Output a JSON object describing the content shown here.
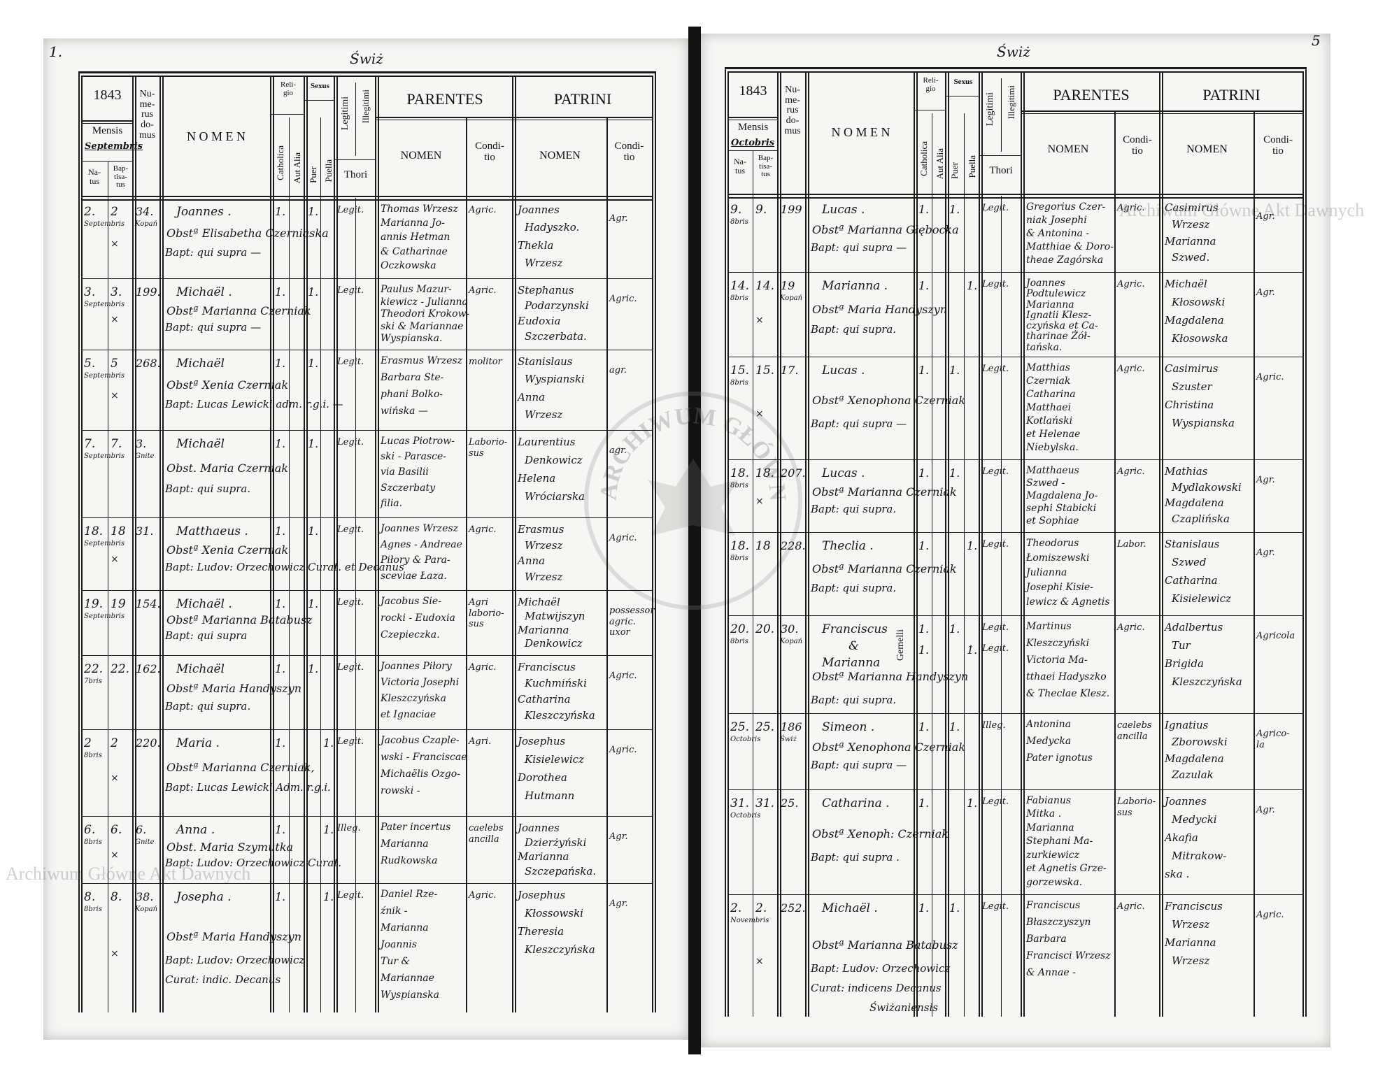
{
  "document": {
    "watermark": "Archiwum Główne Akt Dawnych",
    "seal_text": "ARCHIWUM GŁÓWNE AKT DAWNYCH",
    "header_labels": {
      "numerus_domus": "Nu-\nme-\nrus\ndo-\nmus",
      "mensis": "Mensis",
      "natus": "Na-\ntus",
      "baptisatus": "Bap-\ntisa-\ntus",
      "nomen": "N O M E N",
      "religio": "Reli-\ngio",
      "catholica": "Catholica",
      "aut_alia": "Aut Alia",
      "sexus": "Sexus",
      "puer": "Puer",
      "puella": "Puella",
      "legitimi": "Legitimi",
      "illegitimi": "Illegitimi",
      "thori": "Thori",
      "parentes": "PARENTES",
      "patrini": "PATRINI",
      "sub_nomen": "NOMEN",
      "conditio": "Condi-\ntio"
    }
  },
  "pages": [
    {
      "page_number": "1.",
      "place": "Świż",
      "year": "1843",
      "month": "Septembris",
      "entries": [
        {
          "natus": "2.",
          "bapt": "2",
          "month": "Septembris",
          "domus": "34.",
          "village": "Kopań",
          "nomen": "Joannes .",
          "mother": "Obstª Elisabetha Czerniaska",
          "baptizer": "Bapt: qui supra —",
          "catholica": "1.",
          "puer": "1.",
          "puella": "",
          "legit": "Legit.",
          "parentes": [
            "Thomas Wrzesz",
            "Marianna Jo-",
            "annis Hetman",
            "& Catharinae",
            "Oczkowska"
          ],
          "parentes_conditio": "Agric.",
          "patrini": [
            "Joannes",
            "Hadyszko.",
            "Thekla",
            "Wrzesz"
          ],
          "patrini_conditio": "Agr.",
          "mark": "×"
        },
        {
          "natus": "3.",
          "bapt": "3.",
          "month": "Septembris",
          "domus": "199.",
          "village": "",
          "nomen": "Michaël .",
          "mother": "Obstª Marianna Czerniak",
          "baptizer": "Bapt: qui supra —",
          "catholica": "1.",
          "puer": "1.",
          "puella": "",
          "legit": "Legit.",
          "parentes": [
            "Paulus Mazur-",
            "kiewicz - Julianna",
            "Theodori Krokow-",
            "ski & Mariannae",
            "Wyspianska."
          ],
          "parentes_conditio": "Agric.",
          "patrini": [
            "Stephanus",
            "Podarzynski",
            "Eudoxia",
            "Szczerbata."
          ],
          "patrini_conditio": "Agric.",
          "mark": "×"
        },
        {
          "natus": "5.",
          "bapt": "5",
          "month": "Septembris",
          "domus": "268.",
          "village": "",
          "nomen": "Michaël",
          "mother": "Obstª Xenia Czerniak",
          "baptizer": "Bapt: Lucas Lewicki adm. r.g.i. —",
          "catholica": "1.",
          "puer": "1.",
          "puella": "",
          "legit": "Legit.",
          "parentes": [
            "Erasmus Wrzesz",
            "Barbara Ste-",
            "phani Bolko-",
            "wińska —"
          ],
          "parentes_conditio": "molitor",
          "patrini": [
            "Stanislaus",
            "Wyspianski",
            "Anna",
            "Wrzesz"
          ],
          "patrini_conditio": "agr.",
          "mark": "×"
        },
        {
          "natus": "7.",
          "bapt": "7.",
          "month": "Septembris",
          "domus": "3.",
          "village": "Gnite",
          "nomen": "Michaël",
          "mother": "Obst. Maria Czerniak",
          "baptizer": "Bapt: qui supra.",
          "catholica": "1.",
          "puer": "1.",
          "puella": "",
          "legit": "Legit.",
          "parentes": [
            "Lucas Piotrow-",
            "ski - Parasce-",
            "via Basilii",
            "Szczerbaty",
            "filia."
          ],
          "parentes_conditio": "Laborio-\nsus",
          "patrini": [
            "Laurentius",
            "Denkowicz",
            "Helena",
            "Wróciarska"
          ],
          "patrini_conditio": "agr.",
          "mark": ""
        },
        {
          "natus": "18.",
          "bapt": "18",
          "month": "Septembris",
          "domus": "31.",
          "village": "",
          "nomen": "Matthaeus .",
          "mother": "Obstª Xenia Czerniak",
          "baptizer": "Bapt: Ludov: Orzechowicz Curat. et Decanus",
          "catholica": "1.",
          "puer": "1.",
          "puella": "",
          "legit": "Legit.",
          "parentes": [
            "Joannes Wrzesz",
            "Agnes - Andreae",
            "Piłory & Para-",
            "sceviae Łaza."
          ],
          "parentes_conditio": "Agric.",
          "patrini": [
            "Erasmus",
            "Wrzesz",
            "Anna",
            "Wrzesz"
          ],
          "patrini_conditio": "Agric.",
          "mark": "×"
        },
        {
          "natus": "19.",
          "bapt": "19",
          "month": "Septembris",
          "domus": "154.",
          "village": "",
          "nomen": "Michaël .",
          "mother": "Obstª Marianna Batabusz",
          "baptizer": "Bapt: qui supra",
          "catholica": "1.",
          "puer": "1.",
          "puella": "",
          "legit": "Legit.",
          "parentes": [
            "Jacobus Sie-",
            "rocki - Eudoxia",
            "Czepieczka."
          ],
          "parentes_conditio": "Agri\nlaborio-\nsus",
          "patrini": [
            "Michaël",
            "Matwijszyn",
            "Marianna",
            "Denkowicz"
          ],
          "patrini_conditio": "possessor\nagric.\nuxor",
          "mark": ""
        },
        {
          "natus": "22.",
          "bapt": "22.",
          "month": "7bris",
          "domus": "162.",
          "village": "",
          "nomen": "Michaël",
          "mother": "Obstª Maria Handyszyn",
          "baptizer": "Bapt: qui supra.",
          "catholica": "1.",
          "puer": "1.",
          "puella": "",
          "legit": "Legit.",
          "parentes": [
            "Joannes Piłory",
            "Victoria Josephi",
            "Kleszczyńska",
            "et Ignaciae"
          ],
          "parentes_conditio": "Agric.",
          "patrini": [
            "Franciscus",
            "Kuchmiński",
            "Catharina",
            "Kleszczyńska"
          ],
          "patrini_conditio": "Agric.",
          "mark": ""
        },
        {
          "natus": "2",
          "bapt": "2",
          "month": "8bris",
          "domus": "220.",
          "village": "",
          "nomen": "Maria .",
          "mother": "Obstª Marianna Czerniak,",
          "baptizer": "Bapt: Lucas Lewicki Adm. r.g.i.",
          "catholica": "1.",
          "puer": "",
          "puella": "1.",
          "legit": "Legit.",
          "parentes": [
            "Jacobus Czaple-",
            "wski - Franciscae",
            "Michaëlis Ozgo-",
            "rowski -"
          ],
          "parentes_conditio": "Agri.",
          "patrini": [
            "Josephus",
            "Kisielewicz",
            "Dorothea",
            "Hutmann"
          ],
          "patrini_conditio": "Agric.",
          "mark": "×"
        },
        {
          "natus": "6.",
          "bapt": "6.",
          "month": "8bris",
          "domus": "6.",
          "village": "Gnite",
          "nomen": "Anna .",
          "mother": "Obst. Maria Szymutka",
          "baptizer": "Bapt: Ludov: Orzechowicz Curat.",
          "catholica": "1.",
          "puer": "",
          "puella": "1.",
          "legit": "Illeg.",
          "parentes": [
            "Pater incertus",
            "Marianna",
            "Rudkowska"
          ],
          "parentes_conditio": "caelebs\nancilla",
          "patrini": [
            "Joannes",
            "Dzierżyński",
            "Marianna",
            "Szczepańska."
          ],
          "patrini_conditio": "Agr.",
          "mark": "×"
        },
        {
          "natus": "8.",
          "bapt": "8.",
          "month": "8bris",
          "domus": "38.",
          "village": "Kopań",
          "nomen": "Josepha .",
          "mother": "Obstª Maria Handyszyn",
          "baptizer": "Bapt: Ludov: Orzechowicz",
          "baptizer2": "Curat: indic. Decanus",
          "catholica": "1.",
          "puer": "",
          "puella": "1.",
          "legit": "Legit.",
          "parentes": [
            "Daniel Rze-",
            "źnik -",
            "Marianna",
            "Joannis",
            "Tur &",
            "Mariannae",
            "Wyspianska"
          ],
          "parentes_conditio": "Agric.",
          "patrini": [
            "Josephus",
            "Kłossowski",
            "Theresia",
            "Kleszczyńska"
          ],
          "patrini_conditio": "Agr.",
          "mark": "×"
        }
      ]
    },
    {
      "page_number": "5",
      "place": "Świż",
      "year": "1843",
      "month": "Octobris",
      "entries": [
        {
          "natus": "9.",
          "bapt": "9.",
          "month": "8bris",
          "domus": "199",
          "village": "",
          "nomen": "Lucas .",
          "mother": "Obstª Marianna Głębocka",
          "baptizer": "Bapt: qui supra —",
          "catholica": "1.",
          "puer": "1.",
          "puella": "",
          "legit": "Legit.",
          "parentes": [
            "Gregorius Czer-",
            "niak Josephi",
            "& Antonina -",
            "Matthiae & Doro-",
            "theae Zagórska"
          ],
          "parentes_conditio": "Agric.",
          "patrini": [
            "Casimirus",
            "Wrzesz",
            "Marianna",
            "Szwed."
          ],
          "patrini_conditio": "Agr.",
          "mark": ""
        },
        {
          "natus": "14.",
          "bapt": "14.",
          "month": "8bris",
          "domus": "19",
          "village": "Kopań",
          "nomen": "Marianna .",
          "mother": "Obstª Maria Handyszyn",
          "baptizer": "Bapt: qui supra.",
          "catholica": "1.",
          "puer": "",
          "puella": "1.",
          "legit": "Legit.",
          "parentes": [
            "Joannes",
            "Podtulewicz",
            "Marianna",
            "Ignatii Klesz-",
            "czyńska et Ca-",
            "tharinae Żół-",
            "tańska."
          ],
          "parentes_conditio": "Agric.",
          "patrini": [
            "Michaël",
            "Kłosowski",
            "Magdalena",
            "Kłosowska"
          ],
          "patrini_conditio": "Agr.",
          "mark": "×"
        },
        {
          "natus": "15.",
          "bapt": "15.",
          "month": "8bris",
          "domus": "17.",
          "village": "",
          "nomen": "Lucas .",
          "mother": "Obstª Xenophona Czerniak",
          "baptizer": "Bapt: qui supra —",
          "catholica": "1.",
          "puer": "1.",
          "puella": "",
          "legit": "Legit.",
          "parentes": [
            "Matthias",
            "Czerniak",
            "Catharina",
            "Matthaei",
            "Kotlański",
            "et Helenae",
            "Niebylska."
          ],
          "parentes_conditio": "Agric.",
          "patrini": [
            "Casimirus",
            "Szuster",
            "Christina",
            "Wyspianska"
          ],
          "patrini_conditio": "Agric.",
          "mark": "×"
        },
        {
          "natus": "18.",
          "bapt": "18.",
          "month": "8bris",
          "domus": "207.",
          "village": "",
          "nomen": "Lucas .",
          "mother": "Obstª Marianna Czerniak",
          "baptizer": "Bapt: qui supra.",
          "catholica": "1.",
          "puer": "1.",
          "puella": "",
          "legit": "Legit.",
          "parentes": [
            "Matthaeus",
            "Szwed -",
            "Magdalena Jo-",
            "sephi Stabicki",
            "et Sophiae"
          ],
          "parentes_conditio": "Agric.",
          "patrini": [
            "Mathias",
            "Mydlakowski",
            "Magdalena",
            "Czaplińska"
          ],
          "patrini_conditio": "Agr.",
          "mark": "×"
        },
        {
          "natus": "18.",
          "bapt": "18",
          "month": "8bris",
          "domus": "228.",
          "village": "",
          "nomen": "Theclia .",
          "mother": "Obstª Marianna Czerniak",
          "baptizer": "Bapt: qui supra.",
          "catholica": "1.",
          "puer": "",
          "puella": "1.",
          "legit": "Legit.",
          "parentes": [
            "Theodorus",
            "Łomiszewski",
            "Julianna",
            "Josephi Kisie-",
            "lewicz & Agnetis"
          ],
          "parentes_conditio": "Labor.",
          "patrini": [
            "Stanislaus",
            "Szwed",
            "Catharina",
            "Kisielewicz"
          ],
          "patrini_conditio": "Agr.",
          "mark": ""
        },
        {
          "natus": "20.",
          "bapt": "20.",
          "month": "8bris",
          "domus": "30.",
          "village": "Kopań",
          "nomen": "Franciscus",
          "nomen2": "&",
          "nomen3": "Marianna",
          "note": "Gemelli",
          "mother": "Obstª Marianna Handyszyn",
          "baptizer": "Bapt: qui supra.",
          "catholica": "1.",
          "puer": "1.",
          "puella": "1.",
          "legit": "Legit.",
          "legit2": "Legit.",
          "parentes": [
            "Martinus",
            "Kleszczyński",
            "Victoria Ma-",
            "tthaei Hadyszko",
            "& Theclae Klesz."
          ],
          "parentes_conditio": "Agric.",
          "patrini": [
            "Adalbertus",
            "Tur",
            "Brigida",
            "Kleszczyńska"
          ],
          "patrini_conditio": "Agricola",
          "mark": ""
        },
        {
          "natus": "25.",
          "bapt": "25.",
          "month": "Octobris",
          "domus": "186",
          "village": "Świż",
          "nomen": "Simeon .",
          "mother": "Obstª Xenophona Czerniak",
          "baptizer": "Bapt: qui supra —",
          "catholica": "1.",
          "puer": "1.",
          "puella": "",
          "legit": "Illeg.",
          "parentes": [
            "Antonina",
            "Medycka",
            "Pater ignotus"
          ],
          "parentes_conditio": "caelebs\nancilla",
          "patrini": [
            "Ignatius",
            "Zborowski",
            "Magdalena",
            "Zazulak"
          ],
          "patrini_conditio": "Agrico-\nla",
          "mark": ""
        },
        {
          "natus": "31.",
          "bapt": "31.",
          "month": "Octobris",
          "domus": "25.",
          "village": "",
          "nomen": "Catharina .",
          "mother": "Obstª Xenoph: Czerniak",
          "baptizer": "Bapt: qui supra .",
          "catholica": "1.",
          "puer": "",
          "puella": "1.",
          "legit": "Legit.",
          "parentes": [
            "Fabianus",
            "Mitka .",
            "Marianna",
            "Stephani Ma-",
            "zurkiewicz",
            "et Agnetis Grze-",
            "gorzewska."
          ],
          "parentes_conditio": "Laborio-\nsus",
          "patrini": [
            "Joannes",
            "Medycki",
            "Akafia",
            "Mitrakow-",
            "ska ."
          ],
          "patrini_conditio": "Agr.",
          "mark": ""
        },
        {
          "natus": "2.",
          "bapt": "2.",
          "month": "Novembris",
          "domus": "252.",
          "village": "",
          "nomen": "Michaël .",
          "mother": "Obstª Marianna Batabusz",
          "baptizer": "Bapt: Ludov: Orzechowicz",
          "baptizer2": "Curat: indicens Decanus",
          "baptizer3": "Świżaniensis",
          "catholica": "1.",
          "puer": "1.",
          "puella": "",
          "legit": "Legit.",
          "parentes": [
            "Franciscus",
            "Błaszczyszyn",
            "Barbara",
            "Francisci Wrzesz",
            "& Annae -"
          ],
          "parentes_conditio": "Agric.",
          "patrini": [
            "Franciscus",
            "Wrzesz",
            "Marianna",
            "Wrzesz"
          ],
          "patrini_conditio": "Agric.",
          "mark": "×"
        }
      ]
    }
  ]
}
